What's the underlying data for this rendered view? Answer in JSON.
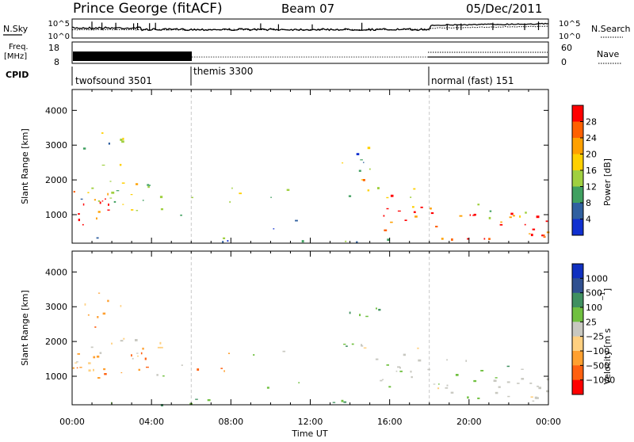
{
  "header": {
    "station": "Prince George (fitACF)",
    "beam": "Beam 07",
    "date": "05/Dec/2011"
  },
  "noise_panel": {
    "left_label": "N.Sky",
    "right_label": "N.Search",
    "left_ticks": [
      "10^5",
      "10^0"
    ],
    "right_ticks": [
      "10^5",
      "10^0"
    ]
  },
  "freq_panel": {
    "left_label_1": "Freq.",
    "left_label_2": "[MHz]",
    "right_label": "Nave",
    "left_ticks": [
      "18",
      "8"
    ],
    "right_ticks": [
      "60",
      "0"
    ]
  },
  "cpid": {
    "label": "CPID",
    "segments": [
      {
        "name": "twofsound 3501",
        "start_hour": 0
      },
      {
        "name": "themis 3300",
        "start_hour": 6
      },
      {
        "name": "normal (fast) 151",
        "start_hour": 18
      }
    ]
  },
  "time_axis": {
    "label": "Time UT",
    "ticks": [
      "00:00",
      "04:00",
      "08:00",
      "12:00",
      "16:00",
      "20:00",
      "00:00"
    ]
  },
  "chart_data": [
    {
      "type": "heatmap",
      "title": "Power",
      "ylabel": "Slant Range [km]",
      "xlabel": "Time UT",
      "ylim": [
        180,
        4600
      ],
      "xlim_hours": [
        0,
        24
      ],
      "yticks": [
        "1000",
        "2000",
        "3000",
        "4000"
      ],
      "colorbar": {
        "label": "Power [dB]",
        "ticks": [
          "28",
          "24",
          "20",
          "16",
          "12",
          "8",
          "4"
        ],
        "colors": [
          "#ff0000",
          "#ff6000",
          "#ffa000",
          "#ffd000",
          "#a0d040",
          "#40a060",
          "#3060a0",
          "#1030d0"
        ]
      }
    },
    {
      "type": "heatmap",
      "title": "Velocity",
      "ylabel": "Slant Range [km]",
      "xlabel": "Time UT",
      "ylim": [
        180,
        4600
      ],
      "xlim_hours": [
        0,
        24
      ],
      "yticks": [
        "1000",
        "2000",
        "3000",
        "4000"
      ],
      "colorbar": {
        "label": "Velocity [m s",
        "ticks": [
          "1000",
          "500",
          "100",
          "25",
          "−25",
          "−100",
          "−500",
          "−1000"
        ],
        "colors": [
          "#1030c0",
          "#305090",
          "#409060",
          "#70c040",
          "#c8c8c0",
          "#ffd080",
          "#ffa030",
          "#ff6010",
          "#ff0000"
        ]
      }
    }
  ]
}
